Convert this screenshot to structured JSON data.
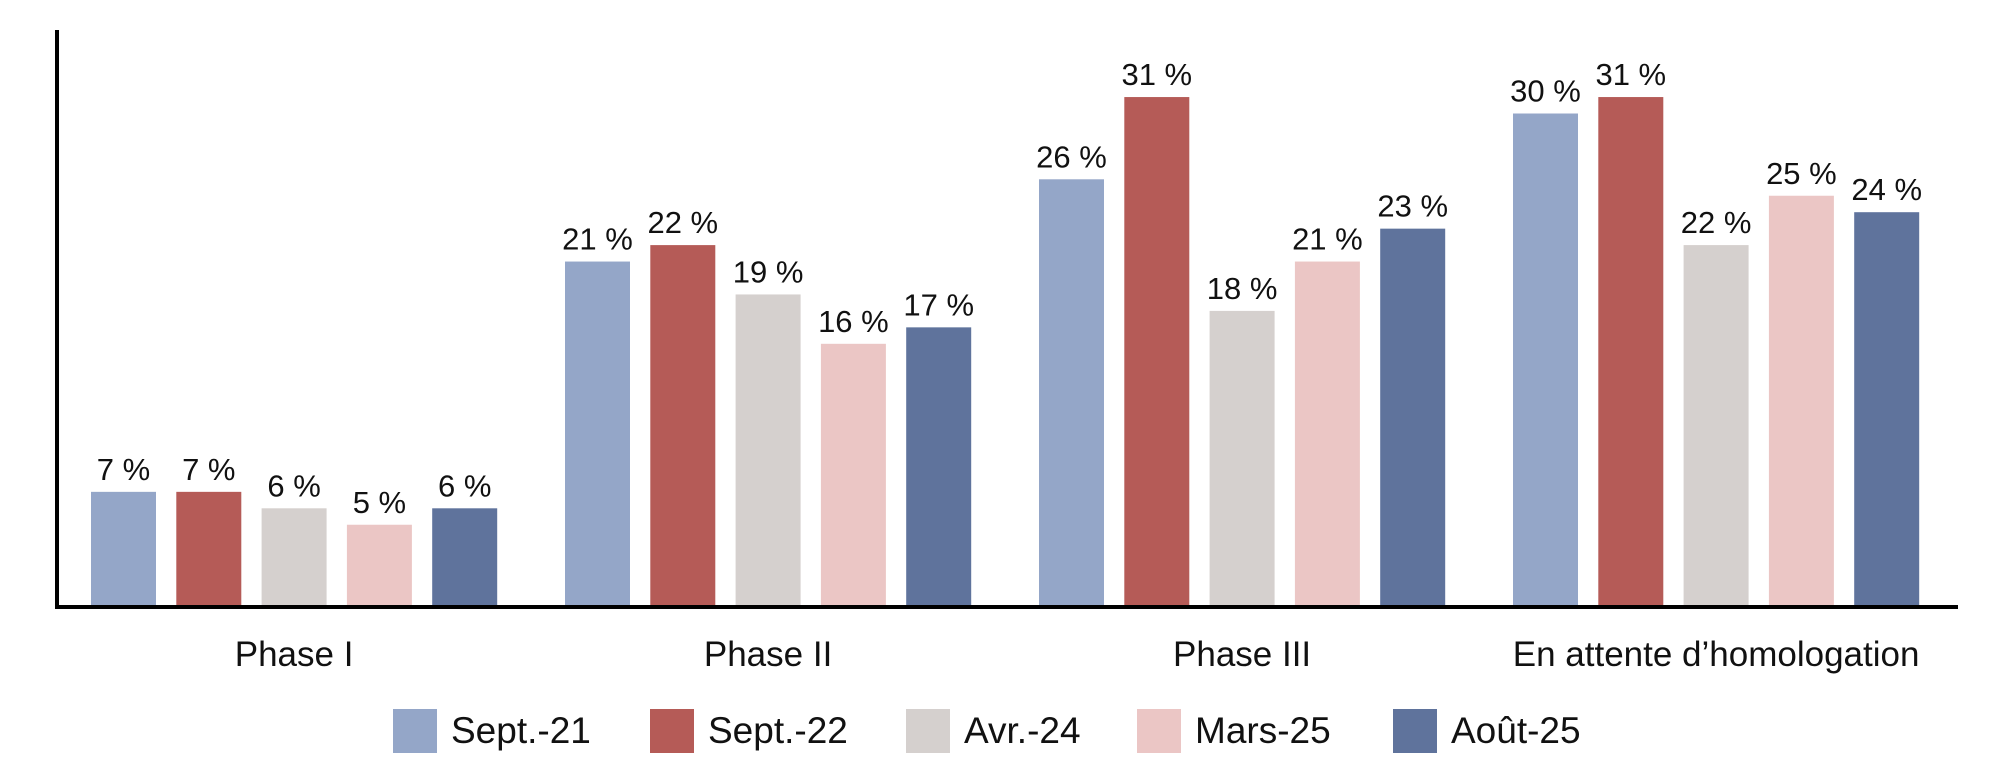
{
  "chart_data": {
    "type": "bar",
    "categories": [
      "Phase I",
      "Phase II",
      "Phase III",
      "En attente d’homologation"
    ],
    "series": [
      {
        "name": "Sept.-21",
        "color": "#94a6c8",
        "values": [
          7,
          21,
          26,
          30
        ],
        "labels": [
          "7 %",
          "21 %",
          "26 %",
          "30 %"
        ]
      },
      {
        "name": "Sept.-22",
        "color": "#b55b57",
        "values": [
          7,
          22,
          31,
          31
        ],
        "labels": [
          "7 %",
          "22 %",
          "31 %",
          "31 %"
        ]
      },
      {
        "name": "Avr.-24",
        "color": "#d5d0ce",
        "values": [
          6,
          19,
          18,
          22
        ],
        "labels": [
          "6 %",
          "19 %",
          "18 %",
          "22 %"
        ]
      },
      {
        "name": "Mars-25",
        "color": "#ebc6c5",
        "values": [
          5,
          16,
          21,
          25
        ],
        "labels": [
          "5 %",
          "16 %",
          "21 %",
          "25 %"
        ]
      },
      {
        "name": "Août-25",
        "color": "#5f739c",
        "values": [
          6,
          17,
          23,
          24
        ],
        "labels": [
          "6 %",
          "17 %",
          "23 %",
          "24 %"
        ]
      }
    ],
    "ylim": [
      0,
      35
    ],
    "grid": false,
    "legend_position": "bottom"
  }
}
